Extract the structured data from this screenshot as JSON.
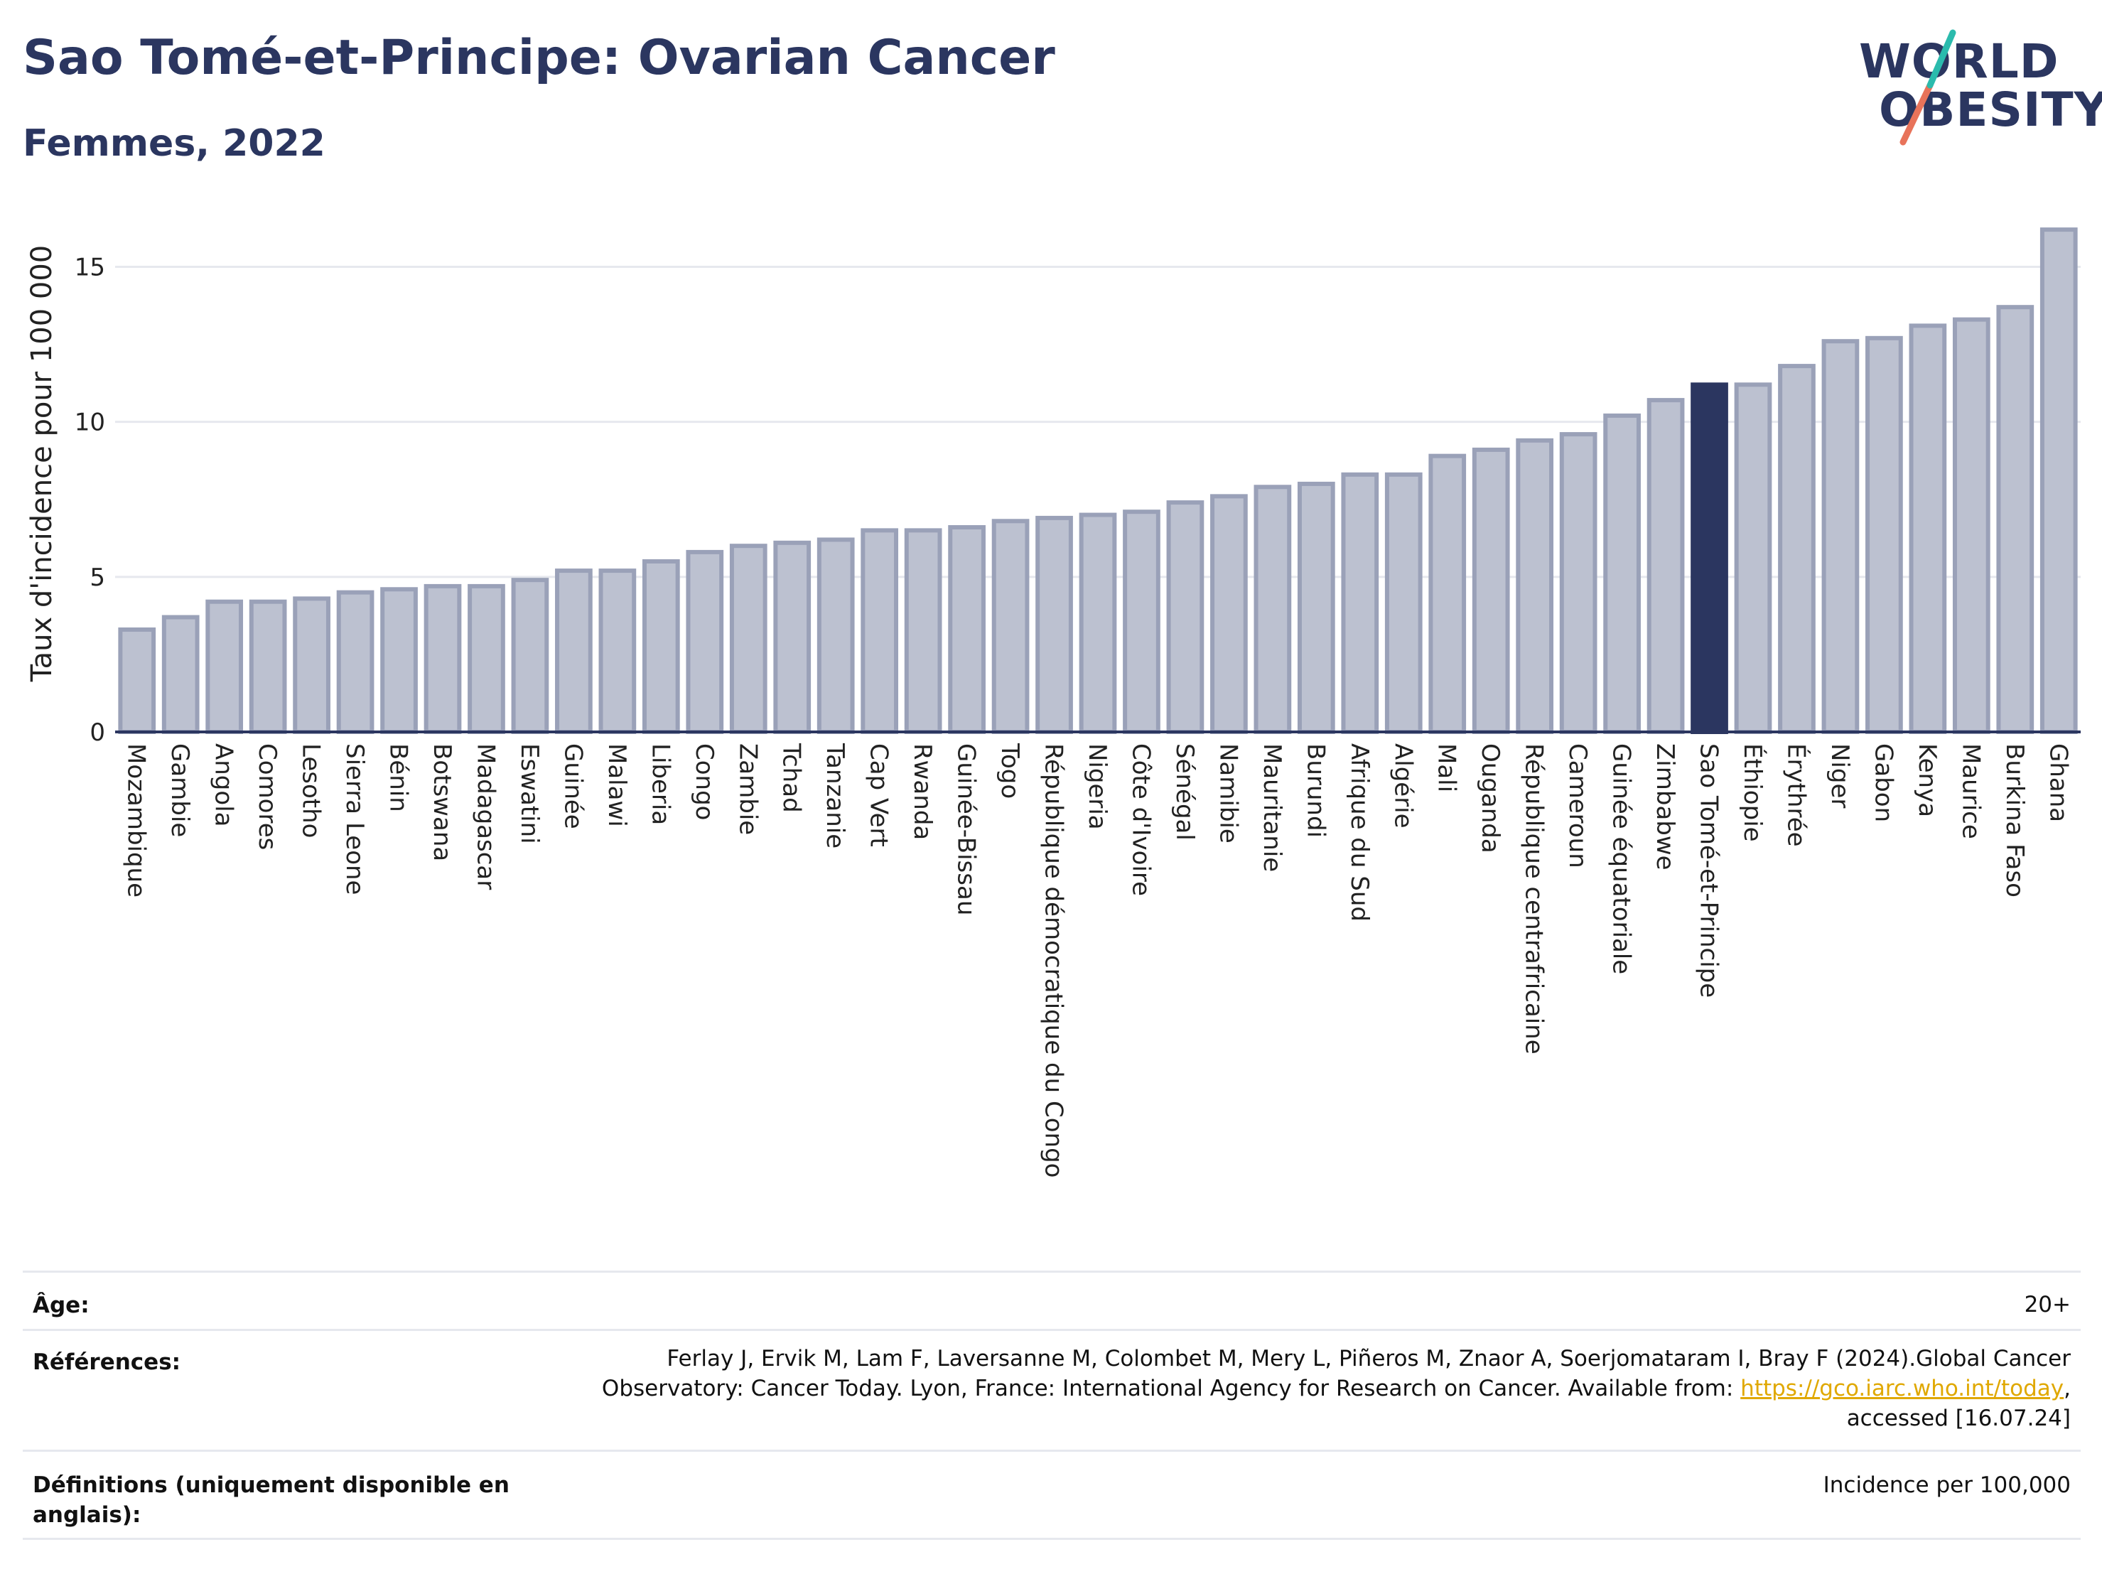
{
  "header": {
    "title": "Sao Tomé-et-Principe: Ovarian Cancer",
    "subtitle": "Femmes, 2022"
  },
  "logo": {
    "line1": "WORLD",
    "line2": "OBESITY"
  },
  "colors": {
    "bar": "#bcc1d0",
    "bar_border": "#9aa1b8",
    "highlight": "#2b3660",
    "grid": "#e6e8ee",
    "title": "#2b3660"
  },
  "chart_data": {
    "type": "bar",
    "ylabel": "Taux d'incidence pour 100 000",
    "ylim": [
      0,
      16.5
    ],
    "yticks": [
      0,
      5,
      10,
      15
    ],
    "grid": true,
    "highlight_category": "Sao Tomé-et-Principe",
    "categories": [
      "Mozambique",
      "Gambie",
      "Angola",
      "Comores",
      "Lesotho",
      "Sierra Leone",
      "Bénin",
      "Botswana",
      "Madagascar",
      "Eswatini",
      "Guinée",
      "Malawi",
      "Liberia",
      "Congo",
      "Zambie",
      "Tchad",
      "Tanzanie",
      "Cap Vert",
      "Rwanda",
      "Guinée-Bissau",
      "Togo",
      "République démocratique du Congo",
      "Nigeria",
      "Côte d'Ivoire",
      "Sénégal",
      "Namibie",
      "Mauritanie",
      "Burundi",
      "Afrique du Sud",
      "Algérie",
      "Mali",
      "Ouganda",
      "République centrafricaine",
      "Cameroun",
      "Guinée équatoriale",
      "Zimbabwe",
      "Sao Tomé-et-Principe",
      "Éthiopie",
      "Érythrée",
      "Niger",
      "Gabon",
      "Kenya",
      "Maurice",
      "Burkina Faso",
      "Ghana"
    ],
    "values": [
      3.3,
      3.7,
      4.2,
      4.2,
      4.3,
      4.5,
      4.6,
      4.7,
      4.7,
      4.9,
      5.2,
      5.2,
      5.5,
      5.8,
      6.0,
      6.1,
      6.2,
      6.5,
      6.5,
      6.6,
      6.8,
      6.9,
      7.0,
      7.1,
      7.4,
      7.6,
      7.9,
      8.0,
      8.3,
      8.3,
      8.9,
      9.1,
      9.4,
      9.6,
      10.2,
      10.7,
      11.2,
      11.2,
      11.8,
      12.6,
      12.7,
      13.1,
      13.3,
      13.7,
      16.2
    ]
  },
  "footer": {
    "age_label": "Âge:",
    "age_value": "20+",
    "ref_label": "Références:",
    "ref_text_1": "Ferlay J, Ervik M, Lam F, Laversanne M, Colombet M, Mery L, Piñeros M, Znaor A, Soerjomataram I, Bray F (2024).Global Cancer",
    "ref_text_2": "Observatory: Cancer Today. Lyon, France: International Agency for Research on Cancer. Available from: ",
    "ref_link": "https://gco.iarc.who.int/today",
    "ref_text_3": ",",
    "ref_text_4": "accessed [16.07.24]",
    "def_label": "Définitions (uniquement disponible en anglais):",
    "def_value": "Incidence per 100,000"
  }
}
